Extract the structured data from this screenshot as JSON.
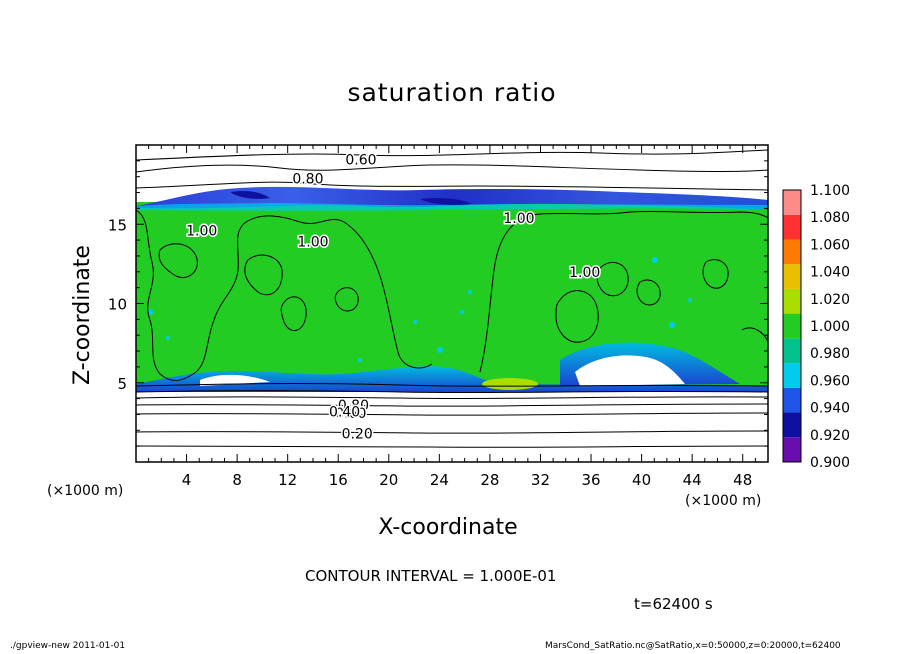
{
  "chart_data": {
    "type": "heatmap",
    "title": "saturation ratio",
    "xlabel": "X-coordinate",
    "ylabel": "Z-coordinate",
    "x_unit": "(×1000 m)",
    "xlim": [
      0,
      50
    ],
    "ylim": [
      0,
      20
    ],
    "x_ticks": [
      4,
      8,
      12,
      16,
      20,
      24,
      28,
      32,
      36,
      40,
      44,
      48
    ],
    "y_ticks": [
      5,
      10,
      15
    ],
    "colorbar": {
      "levels": [
        0.9,
        0.92,
        0.94,
        0.96,
        0.98,
        1.0,
        1.02,
        1.04,
        1.06,
        1.08,
        1.1
      ],
      "labels": [
        "0.900",
        "0.920",
        "0.940",
        "0.960",
        "0.980",
        "1.000",
        "1.020",
        "1.040",
        "1.060",
        "1.080",
        "1.100"
      ],
      "colors": [
        "#6a0dad",
        "#1010a0",
        "#1f55e6",
        "#00ccee",
        "#00c28a",
        "#22cc22",
        "#aadd00",
        "#e8c000",
        "#ff7a00",
        "#ff3030",
        "#ff8a8a"
      ]
    },
    "contour_labels": [
      {
        "text": "0.60",
        "x": 17.8,
        "z": 19.1
      },
      {
        "text": "0.80",
        "x": 13.6,
        "z": 17.9
      },
      {
        "text": "1.00",
        "x": 5.2,
        "z": 14.6
      },
      {
        "text": "1.00",
        "x": 14.0,
        "z": 13.9
      },
      {
        "text": "1.00",
        "x": 30.3,
        "z": 15.4
      },
      {
        "text": "1.00",
        "x": 35.5,
        "z": 12.0
      },
      {
        "text": "0.80",
        "x": 17.2,
        "z": 3.6
      },
      {
        "text": "0.60",
        "x": 17.0,
        "z": 3.1
      },
      {
        "text": "0.40",
        "x": 16.5,
        "z": 3.2
      },
      {
        "text": "0.20",
        "x": 17.5,
        "z": 1.8
      }
    ],
    "contour_interval": "CONTOUR INTERVAL = 1.000E-01",
    "time": "t=62400 s"
  },
  "footer": {
    "left": "./gpview-new   2011-01-01",
    "right": "MarsCond_SatRatio.nc@SatRatio,x=0:50000,z=0:20000,t=62400"
  }
}
